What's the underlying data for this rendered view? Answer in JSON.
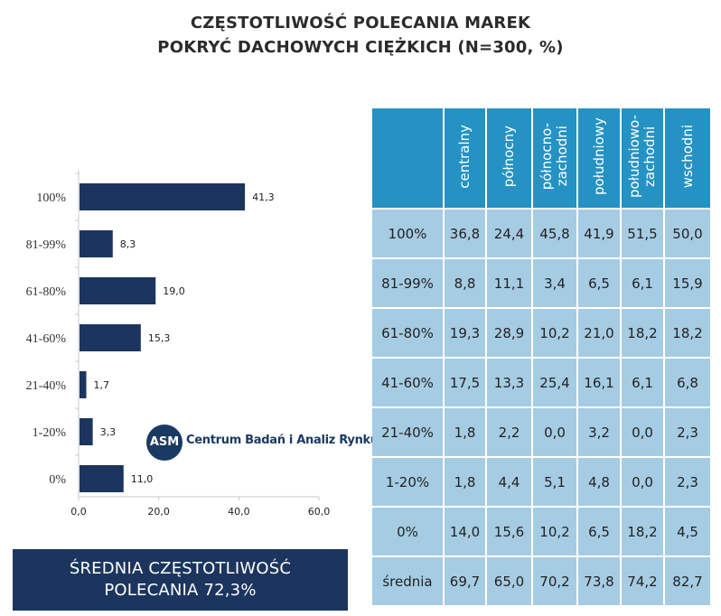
{
  "title_line1": "CZĘSTOTLIWOŚĆ POLECANIA MAREK",
  "title_line2": "POKRYĆ DACHOWYCH CIĘŻKICH (N=300, %)",
  "chart_data": {
    "type": "bar",
    "orientation": "horizontal",
    "categories": [
      "100%",
      "81-99%",
      "61-80%",
      "41-60%",
      "21-40%",
      "1-20%",
      "0%"
    ],
    "values": [
      41.3,
      8.3,
      19.0,
      15.3,
      1.7,
      3.3,
      11.0
    ],
    "value_labels": [
      "41,3",
      "8,3",
      "19,0",
      "15,3",
      "1,7",
      "3,3",
      "11,0"
    ],
    "xlim": [
      0,
      60
    ],
    "xticks": [
      "0,0",
      "20,0",
      "40,0",
      "60,0"
    ],
    "bar_color": "#1c355e",
    "grid": false,
    "legend": "none"
  },
  "logo": {
    "mark": "ASM",
    "name": "Centrum Badań i Analiz Rynku"
  },
  "average_box": {
    "line1": "ŚREDNIA CZĘSTOTLIWOŚĆ",
    "line2": "POLECANIA 72,3%"
  },
  "table": {
    "columns": [
      "centralny",
      "północny",
      "północno-\nzachodni",
      "południowy",
      "południowo-\nzachodni",
      "wschodni"
    ],
    "rows": [
      {
        "label": "100%",
        "values": [
          "36,8",
          "24,4",
          "45,8",
          "41,9",
          "51,5",
          "50,0"
        ]
      },
      {
        "label": "81-99%",
        "values": [
          "8,8",
          "11,1",
          "3,4",
          "6,5",
          "6,1",
          "15,9"
        ]
      },
      {
        "label": "61-80%",
        "values": [
          "19,3",
          "28,9",
          "10,2",
          "21,0",
          "18,2",
          "18,2"
        ]
      },
      {
        "label": "41-60%",
        "values": [
          "17,5",
          "13,3",
          "25,4",
          "16,1",
          "6,1",
          "6,8"
        ]
      },
      {
        "label": "21-40%",
        "values": [
          "1,8",
          "2,2",
          "0,0",
          "3,2",
          "0,0",
          "2,3"
        ]
      },
      {
        "label": "1-20%",
        "values": [
          "1,8",
          "4,4",
          "5,1",
          "4,8",
          "0,0",
          "2,3"
        ]
      },
      {
        "label": "0%",
        "values": [
          "14,0",
          "15,6",
          "10,2",
          "6,5",
          "18,2",
          "4,5"
        ]
      },
      {
        "label": "średnia",
        "values": [
          "69,7",
          "65,0",
          "70,2",
          "73,8",
          "74,2",
          "82,7"
        ]
      }
    ],
    "header_color": "#2592c4",
    "cell_color": "#a6cce4"
  }
}
